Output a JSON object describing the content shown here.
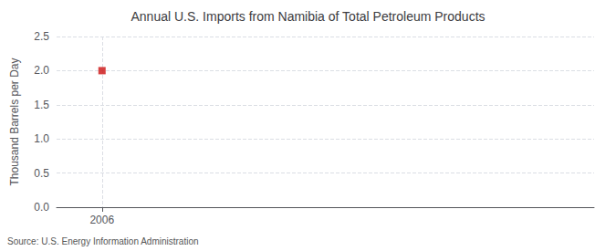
{
  "chart_data": {
    "type": "scatter",
    "title": "Annual U.S. Imports from Namibia of Total Petroleum Products",
    "ylabel": "Thousand Barrels per Day",
    "annotation": "Source: U.S. Energy Information Administration",
    "x": [
      2006
    ],
    "values": [
      2.0
    ],
    "color": "#cc1111",
    "marker": "square",
    "xlim": [
      2005.4,
      2012.5
    ],
    "xticks": [
      2006
    ],
    "ylim": [
      0.0,
      2.5
    ],
    "yticks": [
      {
        "value": 0.0,
        "label": "0.0"
      },
      0.5,
      {
        "value": 1.0,
        "label": "1.0"
      },
      1.5,
      {
        "value": 2.0,
        "label": "2.0"
      },
      2.5
    ],
    "grid": true
  }
}
